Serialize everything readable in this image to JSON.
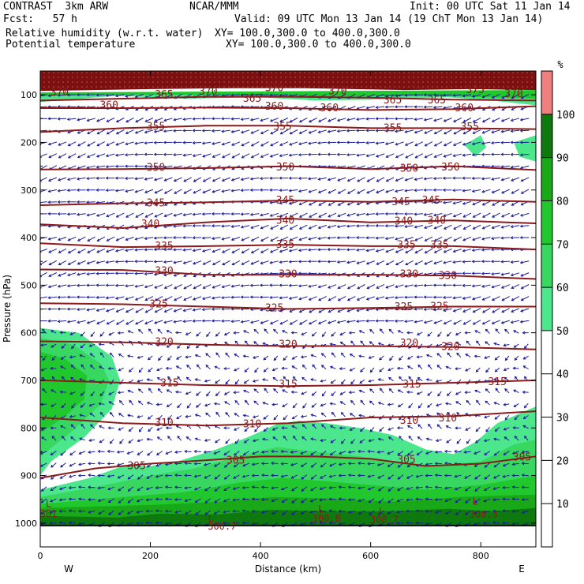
{
  "header": {
    "model": "CONTRAST  3km ARW",
    "source": "NCAR/MMM",
    "init": "Init: 00 UTC Sat 11 Jan 14",
    "forecast": "Fcst:   57 h",
    "valid": "Valid: 09 UTC Mon 13 Jan 14 (19 ChT Mon 13 Jan 14)",
    "field1": "Relative humidity (w.r.t. water)",
    "field1_xy": "XY= 100.0,300.0 to 400.0,300.0",
    "field2": "Potential temperature",
    "field2_xy": "XY= 100.0,300.0 to 400.0,300.0"
  },
  "colors": {
    "rh": "#1a8c1a",
    "theta": "#8b1a1a",
    "wind": "#1c1c9c"
  },
  "chart_data": {
    "type": "heatmap",
    "xlabel": "Distance (km)",
    "ylabel": "Pressure (hPa)",
    "xlim": [
      0,
      900
    ],
    "ylim": [
      1050,
      50
    ],
    "x_ticks": [
      0,
      200,
      400,
      600,
      800
    ],
    "y_ticks": [
      100,
      200,
      300,
      400,
      500,
      600,
      700,
      800,
      900,
      1000
    ],
    "x_end_labels": {
      "left": "W",
      "right": "E"
    },
    "colorbar": {
      "unit": "%",
      "levels": [
        10,
        20,
        30,
        40,
        50,
        60,
        70,
        80,
        90,
        100
      ],
      "fills": [
        {
          "from": 50,
          "to": 60,
          "color": "#4ce68c"
        },
        {
          "from": 60,
          "to": 70,
          "color": "#38d860"
        },
        {
          "from": 70,
          "to": 80,
          "color": "#20c82e"
        },
        {
          "from": 80,
          "to": 90,
          "color": "#18a818"
        },
        {
          "from": 90,
          "to": 100,
          "color": "#0e7a0e"
        },
        {
          "from": 100,
          "to": 110,
          "color": "#f08080"
        }
      ]
    },
    "theta_isentropes": [
      {
        "theta": 365,
        "x": [
          0,
          150,
          300,
          450,
          600,
          750,
          900
        ],
        "p": [
          112,
          108,
          104,
          104,
          106,
          110,
          112
        ]
      },
      {
        "theta": 360,
        "x": [
          0,
          150,
          300,
          450,
          600,
          750,
          900
        ],
        "p": [
          128,
          128,
          127,
          128,
          132,
          130,
          124
        ]
      },
      {
        "theta": 355,
        "x": [
          0,
          150,
          300,
          450,
          600,
          750,
          900
        ],
        "p": [
          178,
          170,
          165,
          165,
          170,
          170,
          172
        ]
      },
      {
        "theta": 350,
        "x": [
          0,
          150,
          300,
          450,
          600,
          750,
          900
        ],
        "p": [
          257,
          256,
          254,
          250,
          256,
          250,
          258
        ]
      },
      {
        "theta": 345,
        "x": [
          0,
          150,
          300,
          450,
          600,
          750,
          900
        ],
        "p": [
          332,
          328,
          326,
          322,
          325,
          320,
          325
        ]
      },
      {
        "theta": 340,
        "x": [
          0,
          150,
          300,
          450,
          600,
          750,
          900
        ],
        "p": [
          372,
          380,
          368,
          360,
          368,
          364,
          370
        ]
      },
      {
        "theta": 335,
        "x": [
          0,
          150,
          300,
          450,
          600,
          750,
          900
        ],
        "p": [
          412,
          420,
          418,
          415,
          418,
          418,
          425
        ]
      },
      {
        "theta": 330,
        "x": [
          0,
          150,
          300,
          450,
          600,
          750,
          900
        ],
        "p": [
          467,
          468,
          478,
          478,
          478,
          480,
          487
        ]
      },
      {
        "theta": 325,
        "x": [
          0,
          150,
          300,
          450,
          600,
          750,
          900
        ],
        "p": [
          538,
          540,
          545,
          550,
          548,
          545,
          545
        ]
      },
      {
        "theta": 320,
        "x": [
          0,
          150,
          300,
          450,
          600,
          750,
          900
        ],
        "p": [
          618,
          620,
          625,
          628,
          628,
          630,
          635
        ]
      },
      {
        "theta": 315,
        "x": [
          0,
          150,
          300,
          450,
          600,
          750,
          900
        ],
        "p": [
          700,
          705,
          710,
          712,
          710,
          705,
          700
        ]
      },
      {
        "theta": 310,
        "x": [
          0,
          150,
          300,
          450,
          600,
          750,
          900
        ],
        "p": [
          778,
          790,
          795,
          790,
          778,
          775,
          765
        ]
      },
      {
        "theta": 305,
        "x": [
          0,
          100,
          200,
          300,
          400,
          500,
          600,
          700,
          800,
          900
        ],
        "p": [
          905,
          885,
          875,
          868,
          860,
          860,
          865,
          880,
          875,
          860
        ]
      }
    ],
    "theta_labels": [
      {
        "text": "370",
        "x": 35,
        "p": 95
      },
      {
        "text": "370",
        "x": 305,
        "p": 93
      },
      {
        "text": "370",
        "x": 425,
        "p": 86
      },
      {
        "text": "370",
        "x": 540,
        "p": 92
      },
      {
        "text": "375",
        "x": 790,
        "p": 90
      },
      {
        "text": "370",
        "x": 860,
        "p": 98
      },
      {
        "text": "365",
        "x": 225,
        "p": 100
      },
      {
        "text": "365",
        "x": 385,
        "p": 108
      },
      {
        "text": "365",
        "x": 640,
        "p": 111
      },
      {
        "text": "365",
        "x": 720,
        "p": 111
      },
      {
        "text": "360",
        "x": 125,
        "p": 122
      },
      {
        "text": "360",
        "x": 425,
        "p": 125
      },
      {
        "text": "360",
        "x": 525,
        "p": 128
      },
      {
        "text": "360",
        "x": 770,
        "p": 128
      },
      {
        "text": "355",
        "x": 210,
        "p": 167
      },
      {
        "text": "355",
        "x": 440,
        "p": 167
      },
      {
        "text": "355",
        "x": 640,
        "p": 170
      },
      {
        "text": "355",
        "x": 780,
        "p": 168
      },
      {
        "text": "350",
        "x": 210,
        "p": 253
      },
      {
        "text": "350",
        "x": 445,
        "p": 252
      },
      {
        "text": "350",
        "x": 670,
        "p": 255
      },
      {
        "text": "350",
        "x": 745,
        "p": 252
      },
      {
        "text": "345",
        "x": 210,
        "p": 328
      },
      {
        "text": "345",
        "x": 445,
        "p": 322
      },
      {
        "text": "345",
        "x": 655,
        "p": 325
      },
      {
        "text": "345",
        "x": 710,
        "p": 322
      },
      {
        "text": "340",
        "x": 200,
        "p": 372
      },
      {
        "text": "340",
        "x": 445,
        "p": 364
      },
      {
        "text": "340",
        "x": 660,
        "p": 366
      },
      {
        "text": "340",
        "x": 720,
        "p": 364
      },
      {
        "text": "335",
        "x": 225,
        "p": 418
      },
      {
        "text": "335",
        "x": 445,
        "p": 415
      },
      {
        "text": "335",
        "x": 665,
        "p": 416
      },
      {
        "text": "335",
        "x": 725,
        "p": 416
      },
      {
        "text": "330",
        "x": 225,
        "p": 470
      },
      {
        "text": "330",
        "x": 450,
        "p": 477
      },
      {
        "text": "330",
        "x": 670,
        "p": 477
      },
      {
        "text": "330",
        "x": 740,
        "p": 480
      },
      {
        "text": "325",
        "x": 215,
        "p": 540
      },
      {
        "text": "325",
        "x": 425,
        "p": 548
      },
      {
        "text": "325",
        "x": 660,
        "p": 546
      },
      {
        "text": "325",
        "x": 725,
        "p": 545
      },
      {
        "text": "320",
        "x": 225,
        "p": 620
      },
      {
        "text": "320",
        "x": 450,
        "p": 625
      },
      {
        "text": "320",
        "x": 670,
        "p": 622
      },
      {
        "text": "320",
        "x": 745,
        "p": 630
      },
      {
        "text": "315",
        "x": 235,
        "p": 706
      },
      {
        "text": "315",
        "x": 450,
        "p": 708
      },
      {
        "text": "315",
        "x": 675,
        "p": 708
      },
      {
        "text": "315",
        "x": 830,
        "p": 703
      },
      {
        "text": "310",
        "x": 225,
        "p": 790
      },
      {
        "text": "310",
        "x": 385,
        "p": 792
      },
      {
        "text": "310",
        "x": 670,
        "p": 785
      },
      {
        "text": "310",
        "x": 740,
        "p": 780
      },
      {
        "text": "305",
        "x": 175,
        "p": 880
      },
      {
        "text": "305",
        "x": 355,
        "p": 868
      },
      {
        "text": "305",
        "x": 665,
        "p": 867
      },
      {
        "text": "305",
        "x": 875,
        "p": 862
      }
    ],
    "surface_values": [
      {
        "text": "301",
        "x": 15,
        "p": 980
      },
      {
        "text": "300.7",
        "x": 330,
        "p": 1007
      },
      {
        "text": "300.8",
        "x": 520,
        "p": 990
      },
      {
        "text": "300.7",
        "x": 625,
        "p": 993
      },
      {
        "text": "300.3",
        "x": 805,
        "p": 982
      }
    ],
    "low_markers": [
      {
        "text": "L",
        "x": 15,
        "p": 960
      },
      {
        "text": "L",
        "x": 310,
        "p": 990
      },
      {
        "text": "L",
        "x": 510,
        "p": 970
      },
      {
        "text": "L",
        "x": 620,
        "p": 975
      },
      {
        "text": "L",
        "x": 790,
        "p": 955
      }
    ],
    "rh_regions": [
      {
        "level": 50,
        "poly": [
          [
            0,
            590
          ],
          [
            70,
            600
          ],
          [
            130,
            650
          ],
          [
            145,
            700
          ],
          [
            130,
            760
          ],
          [
            80,
            820
          ],
          [
            20,
            870
          ],
          [
            0,
            900
          ]
        ]
      },
      {
        "level": 60,
        "poly": [
          [
            0,
            610
          ],
          [
            60,
            625
          ],
          [
            110,
            665
          ],
          [
            125,
            700
          ],
          [
            110,
            750
          ],
          [
            60,
            805
          ],
          [
            0,
            860
          ]
        ]
      },
      {
        "level": 70,
        "poly": [
          [
            0,
            640
          ],
          [
            45,
            655
          ],
          [
            85,
            690
          ],
          [
            80,
            740
          ],
          [
            40,
            780
          ],
          [
            0,
            810
          ]
        ]
      },
      {
        "level": 50,
        "poly": [
          [
            0,
            930
          ],
          [
            90,
            905
          ],
          [
            150,
            880
          ],
          [
            200,
            880
          ],
          [
            250,
            870
          ],
          [
            320,
            845
          ],
          [
            380,
            818
          ],
          [
            430,
            792
          ],
          [
            470,
            785
          ],
          [
            520,
            790
          ],
          [
            580,
            800
          ],
          [
            640,
            815
          ],
          [
            700,
            845
          ],
          [
            750,
            855
          ],
          [
            790,
            830
          ],
          [
            830,
            790
          ],
          [
            880,
            765
          ],
          [
            900,
            755
          ],
          [
            900,
            1005
          ],
          [
            0,
            1005
          ]
        ]
      },
      {
        "level": 60,
        "poly": [
          [
            0,
            945
          ],
          [
            110,
            922
          ],
          [
            200,
            900
          ],
          [
            280,
            885
          ],
          [
            360,
            860
          ],
          [
            430,
            840
          ],
          [
            500,
            850
          ],
          [
            580,
            860
          ],
          [
            650,
            872
          ],
          [
            720,
            880
          ],
          [
            800,
            870
          ],
          [
            860,
            835
          ],
          [
            900,
            825
          ],
          [
            900,
            1005
          ],
          [
            0,
            1005
          ]
        ]
      },
      {
        "level": 70,
        "poly": [
          [
            0,
            960
          ],
          [
            150,
            945
          ],
          [
            260,
            935
          ],
          [
            360,
            915
          ],
          [
            440,
            905
          ],
          [
            520,
            912
          ],
          [
            600,
            920
          ],
          [
            700,
            930
          ],
          [
            800,
            920
          ],
          [
            900,
            900
          ],
          [
            900,
            1005
          ],
          [
            0,
            1005
          ]
        ]
      },
      {
        "level": 80,
        "poly": [
          [
            0,
            968
          ],
          [
            200,
            962
          ],
          [
            330,
            955
          ],
          [
            420,
            945
          ],
          [
            520,
            948
          ],
          [
            640,
            955
          ],
          [
            760,
            945
          ],
          [
            900,
            940
          ],
          [
            900,
            1005
          ],
          [
            0,
            1005
          ]
        ]
      },
      {
        "level": 90,
        "poly": [
          [
            0,
            985
          ],
          [
            140,
            988
          ],
          [
            220,
            980
          ],
          [
            320,
            982
          ],
          [
            420,
            972
          ],
          [
            520,
            975
          ],
          [
            640,
            975
          ],
          [
            740,
            970
          ],
          [
            820,
            975
          ],
          [
            900,
            968
          ],
          [
            900,
            1005
          ],
          [
            0,
            1005
          ]
        ]
      },
      {
        "level": 50,
        "poly": [
          [
            770,
            205
          ],
          [
            800,
            185
          ],
          [
            810,
            210
          ],
          [
            790,
            230
          ]
        ]
      },
      {
        "level": 50,
        "poly": [
          [
            860,
            200
          ],
          [
            900,
            185
          ],
          [
            900,
            240
          ],
          [
            870,
            230
          ]
        ]
      },
      {
        "level": 50,
        "poly": [
          [
            0,
            97
          ],
          [
            900,
            93
          ],
          [
            900,
            122
          ],
          [
            820,
            112
          ],
          [
            740,
            105
          ],
          [
            600,
            110
          ],
          [
            500,
            112
          ],
          [
            400,
            105
          ],
          [
            260,
            108
          ],
          [
            140,
            102
          ],
          [
            0,
            115
          ]
        ]
      },
      {
        "level": 70,
        "poly": [
          [
            0,
            95
          ],
          [
            900,
            90
          ],
          [
            900,
            108
          ],
          [
            700,
            102
          ],
          [
            500,
            104
          ],
          [
            300,
            100
          ],
          [
            100,
            100
          ],
          [
            0,
            103
          ]
        ]
      },
      {
        "level": 100,
        "poly": [
          [
            0,
            50
          ],
          [
            900,
            50
          ],
          [
            900,
            90
          ],
          [
            780,
            88
          ],
          [
            660,
            90
          ],
          [
            480,
            86
          ],
          [
            350,
            86
          ],
          [
            200,
            88
          ],
          [
            0,
            92
          ]
        ]
      }
    ],
    "wind_field": "arrow vectors, predominantly easterly aloft and westerly near surface"
  }
}
